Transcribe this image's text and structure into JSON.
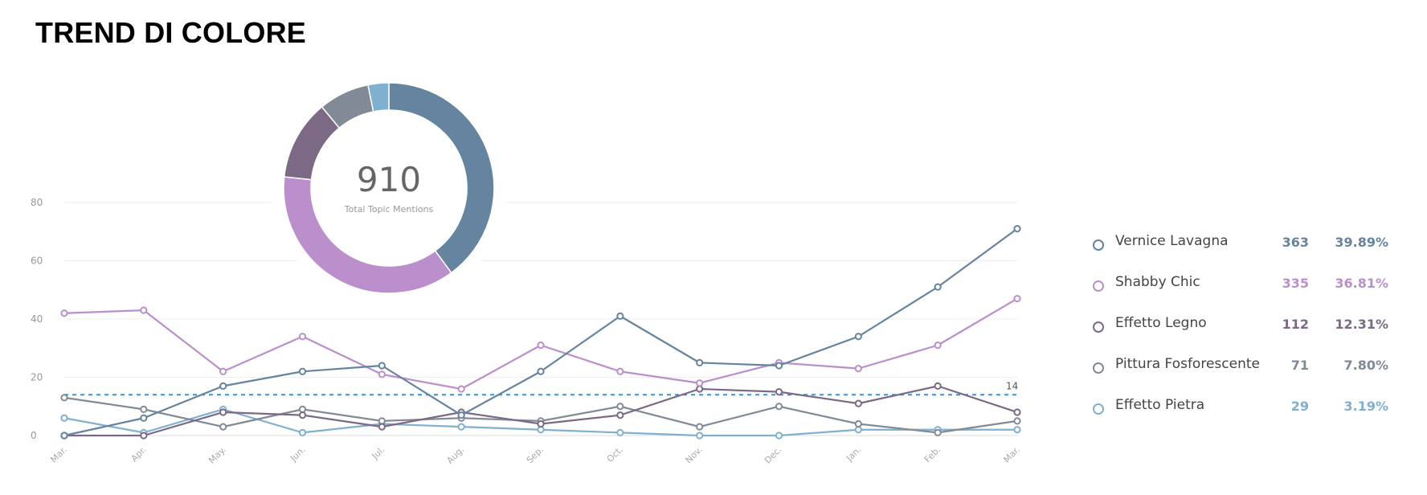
{
  "page_title": "TREND DI COLORE",
  "donut": {
    "total": "910",
    "caption": "Total Topic Mentions"
  },
  "legend": [
    {
      "name": "Vernice Lavagna",
      "count": "363",
      "pct": "39.89%",
      "color": "#64849f"
    },
    {
      "name": "Shabby Chic",
      "count": "335",
      "pct": "36.81%",
      "color": "#bb8fcc"
    },
    {
      "name": "Effetto Legno",
      "count": "112",
      "pct": "12.31%",
      "color": "#7b6985"
    },
    {
      "name": "Pittura Fosforescente",
      "count": "71",
      "pct": "7.80%",
      "color": "#818a96"
    },
    {
      "name": "Effetto Pietra",
      "count": "29",
      "pct": "3.19%",
      "color": "#7fb0d0"
    }
  ],
  "chart_data": [
    {
      "type": "pie",
      "categories": [
        "Vernice Lavagna",
        "Shabby Chic",
        "Effetto Legno",
        "Pittura Fosforescente",
        "Effetto Pietra"
      ],
      "values": [
        363,
        335,
        112,
        71,
        29
      ],
      "colors": [
        "#64849f",
        "#bb8fcc",
        "#7b6985",
        "#818a96",
        "#7fb0d0"
      ],
      "donut": true,
      "center_value": "910",
      "center_caption": "Total Topic Mentions"
    },
    {
      "type": "line",
      "x": [
        "Mar.",
        "Apr.",
        "May.",
        "Jun.",
        "Jul.",
        "Aug.",
        "Sep.",
        "Oct.",
        "Nov.",
        "Dec.",
        "Jan.",
        "Feb.",
        "Mar."
      ],
      "ylim": [
        0,
        80
      ],
      "yticks": [
        0,
        20,
        40,
        60,
        80
      ],
      "grid": true,
      "series": [
        {
          "name": "Vernice Lavagna",
          "color": "#64849f",
          "values": [
            0,
            6,
            17,
            22,
            24,
            7,
            22,
            41,
            25,
            24,
            34,
            51,
            71
          ]
        },
        {
          "name": "Shabby Chic",
          "color": "#bb8fcc",
          "values": [
            42,
            43,
            22,
            34,
            21,
            16,
            31,
            22,
            18,
            25,
            23,
            31,
            47
          ]
        },
        {
          "name": "Effetto Legno",
          "color": "#7b6985",
          "values": [
            0,
            0,
            8,
            7,
            3,
            8,
            4,
            7,
            16,
            15,
            11,
            17,
            8
          ]
        },
        {
          "name": "Pittura Fosforescente",
          "color": "#818a96",
          "values": [
            13,
            9,
            3,
            9,
            5,
            6,
            5,
            10,
            3,
            10,
            4,
            1,
            5
          ]
        },
        {
          "name": "Effetto Pietra",
          "color": "#7fb0d0",
          "values": [
            6,
            1,
            9,
            1,
            4,
            3,
            2,
            1,
            0,
            0,
            2,
            2,
            2
          ]
        }
      ],
      "reference_line": {
        "value": 14,
        "label": "14",
        "color": "#3d8fd6"
      }
    }
  ]
}
